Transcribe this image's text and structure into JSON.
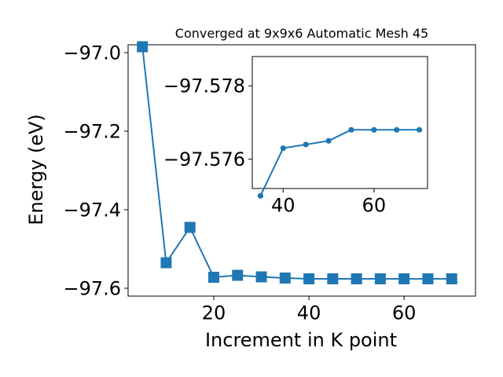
{
  "chart_data": [
    {
      "type": "line",
      "title": "Converged at 9x9x6 Automatic Mesh 45",
      "xlabel": "Increment in K point",
      "ylabel": "Energy (eV)",
      "marker": "square",
      "color": "#1f77b4",
      "xlim": [
        2,
        75
      ],
      "ylim": [
        -97.62,
        -96.98
      ],
      "xticks": [
        20,
        40,
        60
      ],
      "yticks": [
        -97.0,
        -97.2,
        -97.4,
        -97.6
      ],
      "ytick_labels": [
        "−97.0",
        "−97.2",
        "−97.4",
        "−97.6"
      ],
      "xtick_labels": [
        "20",
        "40",
        "60"
      ],
      "grid": false,
      "x": [
        5,
        10,
        15,
        20,
        25,
        30,
        35,
        40,
        45,
        50,
        55,
        60,
        65,
        70
      ],
      "y": [
        -96.985,
        -97.535,
        -97.445,
        -97.572,
        -97.567,
        -97.571,
        -97.574,
        -97.576,
        -97.576,
        -97.576,
        -97.576,
        -97.576,
        -97.576,
        -97.576
      ]
    },
    {
      "type": "line",
      "inset": true,
      "marker": "circle",
      "color": "#1f77b4",
      "xlim": [
        33.2,
        71.8
      ],
      "ylim": [
        -97.5752,
        -97.5788
      ],
      "xticks": [
        40,
        60
      ],
      "xtick_labels": [
        "40",
        "60"
      ],
      "yticks": [
        -97.578,
        -97.576
      ],
      "ytick_labels": [
        "−97.578",
        "−97.576"
      ],
      "grid": false,
      "x": [
        35,
        40,
        45,
        50,
        55,
        60,
        65,
        70
      ],
      "y": [
        -97.575,
        -97.5763,
        -97.5764,
        -97.5765,
        -97.5768,
        -97.5768,
        -97.5768,
        -97.5768
      ]
    }
  ]
}
